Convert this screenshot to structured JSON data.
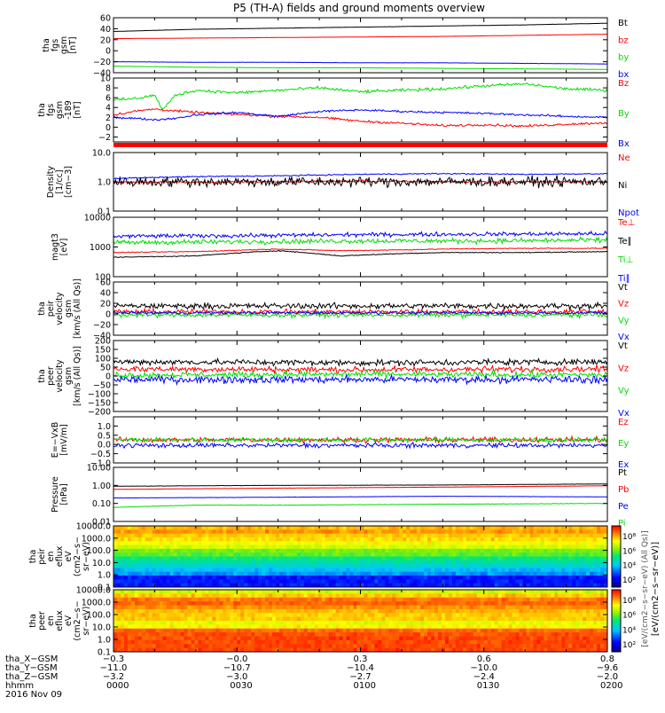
{
  "title": "P5 (TH-A) fields and ground moments overview",
  "colors": {
    "black": "#000000",
    "red": "#ff0000",
    "green": "#00dd00",
    "blue": "#0000ff"
  },
  "chart_data": [
    {
      "id": "fgs_gsm",
      "type": "line",
      "ylabel_lines": [
        "tha",
        "fgs",
        "gsm",
        "[nT]"
      ],
      "ylim": [
        -40,
        60
      ],
      "yticks": [
        {
          "v": 60,
          "label": "60"
        },
        {
          "v": 40,
          "label": "40"
        },
        {
          "v": 20,
          "label": "20"
        },
        {
          "v": 0,
          "label": "0"
        },
        {
          "v": -20,
          "label": "−20"
        },
        {
          "v": -40,
          "label": "−40"
        }
      ],
      "log": false,
      "series": [
        {
          "name": "Bt",
          "color": "#000000",
          "x": [
            0,
            10,
            20,
            30,
            40,
            60,
            80,
            100,
            120
          ],
          "y": [
            35,
            37,
            39,
            40,
            41,
            43,
            45,
            47,
            50
          ],
          "noise": 0.3
        },
        {
          "name": "bz",
          "color": "#ff0000",
          "x": [
            0,
            20,
            40,
            60,
            80,
            100,
            120
          ],
          "y": [
            22,
            23,
            24,
            25,
            26,
            28,
            30
          ],
          "noise": 0.2
        },
        {
          "name": "by",
          "color": "#00dd00",
          "x": [
            0,
            20,
            40,
            60,
            80,
            100,
            120
          ],
          "y": [
            -28,
            -30,
            -31,
            -31,
            -32,
            -33,
            -34
          ],
          "noise": 0.3
        },
        {
          "name": "bx",
          "color": "#0000ff",
          "x": [
            0,
            20,
            40,
            60,
            80,
            100,
            120
          ],
          "y": [
            -20,
            -21,
            -21,
            -22,
            -22,
            -23,
            -24
          ],
          "noise": 0.3
        }
      ]
    },
    {
      "id": "fgs_gse",
      "type": "line",
      "ylabel_lines": [
        "tha",
        "fgs",
        "gsm",
        "-189",
        "[nT]"
      ],
      "ylim": [
        -3,
        10
      ],
      "yticks": [
        {
          "v": 10,
          "label": "10"
        },
        {
          "v": 8,
          "label": "8"
        },
        {
          "v": 6,
          "label": "6"
        },
        {
          "v": 4,
          "label": "4"
        },
        {
          "v": 2,
          "label": "2"
        },
        {
          "v": 0,
          "label": "0"
        },
        {
          "v": -2,
          "label": "−2"
        }
      ],
      "log": false,
      "series": [
        {
          "name": "Bz",
          "color": "#ff0000",
          "x": [
            0,
            5,
            10,
            15,
            20,
            30,
            40,
            50,
            60,
            70,
            80,
            90,
            100,
            110,
            120
          ],
          "y": [
            2.5,
            3.2,
            3.7,
            3.3,
            3.0,
            2.6,
            2.2,
            2.0,
            1.2,
            0.8,
            0.3,
            0.5,
            0.2,
            0.6,
            0.9
          ],
          "noise": 0.35
        },
        {
          "name": "By",
          "color": "#00dd00",
          "x": [
            0,
            5,
            10,
            12,
            15,
            20,
            30,
            40,
            50,
            60,
            70,
            80,
            90,
            100,
            110,
            120
          ],
          "y": [
            5.5,
            5.8,
            6.5,
            3.5,
            6.5,
            7.5,
            7.0,
            7.5,
            8.0,
            7.2,
            7.5,
            7.8,
            8.4,
            8.8,
            7.8,
            7.5
          ],
          "noise": 0.45
        },
        {
          "name": "Bx",
          "color": "#0000ff",
          "x": [
            0,
            5,
            10,
            15,
            20,
            30,
            40,
            50,
            60,
            70,
            80,
            90,
            100,
            110,
            120
          ],
          "y": [
            2.0,
            1.8,
            1.5,
            1.8,
            2.5,
            3.0,
            2.2,
            3.2,
            3.5,
            3.2,
            3.0,
            2.8,
            2.5,
            2.2,
            2.0
          ],
          "noise": 0.3
        }
      ],
      "quality_bar_color": "#ff0000"
    },
    {
      "id": "density",
      "type": "line",
      "ylabel_lines": [
        "Density",
        "[1/cc]",
        "[cm−3]"
      ],
      "ylim": [
        0.1,
        10
      ],
      "log": true,
      "yticks": [
        {
          "v": 10,
          "label": "10.0"
        },
        {
          "v": 1,
          "label": "1.0"
        },
        {
          "v": 0.1,
          "label": "0.1"
        }
      ],
      "series": [
        {
          "name": "Ne",
          "color": "#ff0000",
          "x": [
            0,
            30,
            60,
            90,
            120
          ],
          "y": [
            0.95,
            1.0,
            1.05,
            1.0,
            1.0
          ],
          "noise": 0.05
        },
        {
          "name": "Ni",
          "color": "#000000",
          "x": [
            0,
            30,
            60,
            90,
            120
          ],
          "y": [
            1.0,
            1.0,
            1.0,
            1.0,
            1.0
          ],
          "noise": 0.25
        },
        {
          "name": "Npot",
          "color": "#0000ff",
          "x": [
            0,
            20,
            40,
            60,
            80,
            100,
            120
          ],
          "y": [
            1.3,
            1.5,
            1.6,
            1.8,
            1.9,
            1.8,
            1.9
          ],
          "noise": 0.03
        }
      ]
    },
    {
      "id": "temperature",
      "type": "line",
      "ylabel_lines": [
        "magt3",
        "[eV]"
      ],
      "ylim": [
        100,
        10000
      ],
      "log": true,
      "yticks": [
        {
          "v": 10000,
          "label": "10000"
        },
        {
          "v": 1000,
          "label": "1000"
        },
        {
          "v": 100,
          "label": "100"
        }
      ],
      "series": [
        {
          "name": "Te⊥",
          "color": "#ff0000",
          "x": [
            0,
            20,
            40,
            55,
            70,
            80,
            100,
            120
          ],
          "y": [
            650,
            700,
            850,
            750,
            800,
            850,
            900,
            900
          ],
          "noise": 0.02
        },
        {
          "name": "Te∥",
          "color": "#000000",
          "x": [
            0,
            20,
            40,
            55,
            70,
            80,
            100,
            120
          ],
          "y": [
            450,
            500,
            750,
            500,
            600,
            650,
            650,
            700
          ],
          "noise": 0.02
        },
        {
          "name": "Ti⊥",
          "color": "#00dd00",
          "x": [
            0,
            30,
            60,
            90,
            120
          ],
          "y": [
            1400,
            1500,
            1600,
            1600,
            1700
          ],
          "noise": 0.12
        },
        {
          "name": "Ti∥",
          "color": "#0000ff",
          "x": [
            0,
            30,
            60,
            90,
            120
          ],
          "y": [
            2300,
            2400,
            2600,
            2700,
            2800
          ],
          "noise": 0.1
        }
      ]
    },
    {
      "id": "peir_velocity",
      "type": "line",
      "ylabel_lines": [
        "tha",
        "peir",
        "velocity",
        "gsm",
        "[km/s (All Qs)]"
      ],
      "ylim": [
        -40,
        60
      ],
      "log": false,
      "yticks": [
        {
          "v": 60,
          "label": "60"
        },
        {
          "v": 40,
          "label": "40"
        },
        {
          "v": 20,
          "label": "20"
        },
        {
          "v": 0,
          "label": "0"
        },
        {
          "v": -20,
          "label": "−20"
        },
        {
          "v": -40,
          "label": "−40"
        }
      ],
      "series": [
        {
          "name": "Vt",
          "color": "#000000",
          "x": [
            0,
            60,
            120
          ],
          "y": [
            15,
            15,
            15
          ],
          "noise": 8
        },
        {
          "name": "Vz",
          "color": "#ff0000",
          "x": [
            0,
            60,
            120
          ],
          "y": [
            4,
            4,
            4
          ],
          "noise": 7
        },
        {
          "name": "Vy",
          "color": "#00dd00",
          "x": [
            0,
            60,
            120
          ],
          "y": [
            -2,
            -2,
            -2
          ],
          "noise": 6
        },
        {
          "name": "Vx",
          "color": "#0000ff",
          "x": [
            0,
            60,
            120
          ],
          "y": [
            2,
            2,
            2
          ],
          "noise": 4
        }
      ]
    },
    {
      "id": "peer_velocity",
      "type": "line",
      "ylabel_lines": [
        "tha",
        "peer",
        "velocity",
        "gsm",
        "[km/s (All Qs)]"
      ],
      "ylim": [
        -200,
        200
      ],
      "log": false,
      "yticks": [
        {
          "v": 200,
          "label": "200"
        },
        {
          "v": 150,
          "label": "150"
        },
        {
          "v": 100,
          "label": "100"
        },
        {
          "v": 50,
          "label": "50"
        },
        {
          "v": 0,
          "label": "0"
        },
        {
          "v": -50,
          "label": "−50"
        },
        {
          "v": -100,
          "label": "−100"
        },
        {
          "v": -150,
          "label": "−150"
        },
        {
          "v": -200,
          "label": "−200"
        }
      ],
      "series": [
        {
          "name": "Vt",
          "color": "#000000",
          "x": [
            0,
            60,
            120
          ],
          "y": [
            80,
            75,
            80
          ],
          "noise": 25
        },
        {
          "name": "Vz",
          "color": "#ff0000",
          "x": [
            0,
            60,
            120
          ],
          "y": [
            40,
            35,
            40
          ],
          "noise": 25
        },
        {
          "name": "Vy",
          "color": "#00dd00",
          "x": [
            0,
            60,
            120
          ],
          "y": [
            5,
            10,
            5
          ],
          "noise": 25
        },
        {
          "name": "Vx",
          "color": "#0000ff",
          "x": [
            0,
            60,
            120
          ],
          "y": [
            -20,
            -20,
            -20
          ],
          "noise": 30
        }
      ]
    },
    {
      "id": "efield",
      "type": "line",
      "ylabel_lines": [
        "E=−VxB",
        "[mV/m]"
      ],
      "ylim": [
        -1.0,
        1.5
      ],
      "log": false,
      "yticks": [
        {
          "v": 1.0,
          "label": "1.0"
        },
        {
          "v": 0.5,
          "label": "0.5"
        },
        {
          "v": 0,
          "label": "0.0"
        },
        {
          "v": -0.5,
          "label": "−0.5"
        },
        {
          "v": -1.0,
          "label": "−1.0"
        }
      ],
      "series": [
        {
          "name": "Ez",
          "color": "#ff0000",
          "x": [
            0,
            60,
            120
          ],
          "y": [
            0.25,
            0.25,
            0.25
          ],
          "noise": 0.2
        },
        {
          "name": "Ey",
          "color": "#00dd00",
          "x": [
            0,
            60,
            120
          ],
          "y": [
            0.25,
            0.25,
            0.25
          ],
          "noise": 0.18
        },
        {
          "name": "Ex",
          "color": "#0000ff",
          "x": [
            0,
            60,
            120
          ],
          "y": [
            -0.05,
            -0.05,
            -0.05
          ],
          "noise": 0.18
        }
      ]
    },
    {
      "id": "pressure",
      "type": "line",
      "ylabel_lines": [
        "Pressure",
        "[nPa]"
      ],
      "ylim": [
        0.01,
        10
      ],
      "log": true,
      "yticks": [
        {
          "v": 10,
          "label": "10.00"
        },
        {
          "v": 1,
          "label": "1.00"
        },
        {
          "v": 0.1,
          "label": "0.10"
        },
        {
          "v": 0.01,
          "label": "0.01"
        }
      ],
      "series": [
        {
          "name": "Pt",
          "color": "#000000",
          "x": [
            0,
            40,
            80,
            120
          ],
          "y": [
            0.9,
            1.0,
            1.05,
            1.2
          ],
          "noise": 0.01
        },
        {
          "name": "Pb",
          "color": "#ff0000",
          "x": [
            0,
            40,
            80,
            120
          ],
          "y": [
            0.6,
            0.7,
            0.8,
            0.95
          ],
          "noise": 0.01
        },
        {
          "name": "Pe",
          "color": "#0000ff",
          "x": [
            0,
            40,
            80,
            120
          ],
          "y": [
            0.2,
            0.22,
            0.25,
            0.23
          ],
          "noise": 0.01
        },
        {
          "name": "Pi",
          "color": "#00dd00",
          "x": [
            0,
            20,
            40,
            80,
            120
          ],
          "y": [
            0.06,
            0.08,
            0.08,
            0.09,
            0.1
          ],
          "noise": 0.02
        }
      ]
    },
    {
      "id": "ion_spectrogram",
      "type": "heatmap",
      "ylabel_lines": [
        "tha",
        "peir",
        "en",
        "eflux",
        "eV",
        "(cm2−s−",
        "sr−eV)"
      ],
      "ylim": [
        0.1,
        10000
      ],
      "log": true,
      "yticks": [
        {
          "v": 10000,
          "label": "10000.0"
        },
        {
          "v": 1000,
          "label": "1000.0"
        },
        {
          "v": 100,
          "label": "100.0"
        },
        {
          "v": 10,
          "label": "10.0"
        },
        {
          "v": 1,
          "label": "1.0"
        },
        {
          "v": 0.1,
          "label": "0.1"
        }
      ],
      "energy_levels": [
        10000,
        5000,
        2000,
        1000,
        500,
        200,
        100,
        50,
        20,
        10,
        5,
        2,
        1,
        0.5,
        0.2,
        0.1
      ],
      "profile": [
        0.82,
        0.85,
        0.8,
        0.78,
        0.74,
        0.7,
        0.6,
        0.58,
        0.5,
        0.45,
        0.4,
        0.35,
        0.3,
        0.2,
        0.2,
        0.2
      ]
    },
    {
      "id": "electron_spectrogram",
      "type": "heatmap",
      "ylabel_lines": [
        "tha",
        "peer",
        "en",
        "eflux",
        "eV",
        "(cm2−s−",
        "sr−eV)"
      ],
      "ylim": [
        0.1,
        10000
      ],
      "log": true,
      "yticks": [
        {
          "v": 10000,
          "label": "10000.0"
        },
        {
          "v": 1000,
          "label": "1000.0"
        },
        {
          "v": 100,
          "label": "100.0"
        },
        {
          "v": 10,
          "label": "10.0"
        },
        {
          "v": 1,
          "label": "1.0"
        },
        {
          "v": 0.1,
          "label": "0.1"
        }
      ],
      "energy_levels": [
        10000,
        5000,
        2000,
        1000,
        500,
        200,
        100,
        50,
        20,
        10,
        5,
        2,
        1,
        0.5,
        0.2,
        0.1
      ],
      "profile": [
        0.7,
        0.8,
        0.88,
        0.9,
        0.86,
        0.82,
        0.8,
        0.8,
        0.72,
        0.76,
        0.9,
        0.92,
        0.93,
        0.93,
        0.93,
        0.93
      ]
    }
  ],
  "colorbar": {
    "label": "[eV/(cm2−s−sr−eV)]",
    "ticks": [
      "10⁸",
      "10⁶",
      "10⁴",
      "10²",
      "10⁸",
      "10⁶",
      "10⁴",
      "10²"
    ],
    "overlay_label": "[eV/(cm2−s−sr−eV) (All Qs)]"
  },
  "xaxis": {
    "row_labels": [
      "tha_X−GSM",
      "tha_Y−GSM",
      "tha_Z−GSM",
      "hhmm",
      "2016 Nov 09"
    ],
    "columns": [
      {
        "values": [
          "−0.3",
          "−11.0",
          "−3.2",
          "0000"
        ]
      },
      {
        "values": [
          "−0.0",
          "−10.7",
          "−3.0",
          "0030"
        ]
      },
      {
        "values": [
          "0.3",
          "−10.4",
          "−2.7",
          "0100"
        ]
      },
      {
        "values": [
          "0.6",
          "−10.0",
          "−2.4",
          "0130"
        ]
      },
      {
        "values": [
          "0.8",
          "−9.6",
          "−2.0",
          "0200"
        ]
      }
    ],
    "x_range_minutes": [
      0,
      120
    ]
  }
}
